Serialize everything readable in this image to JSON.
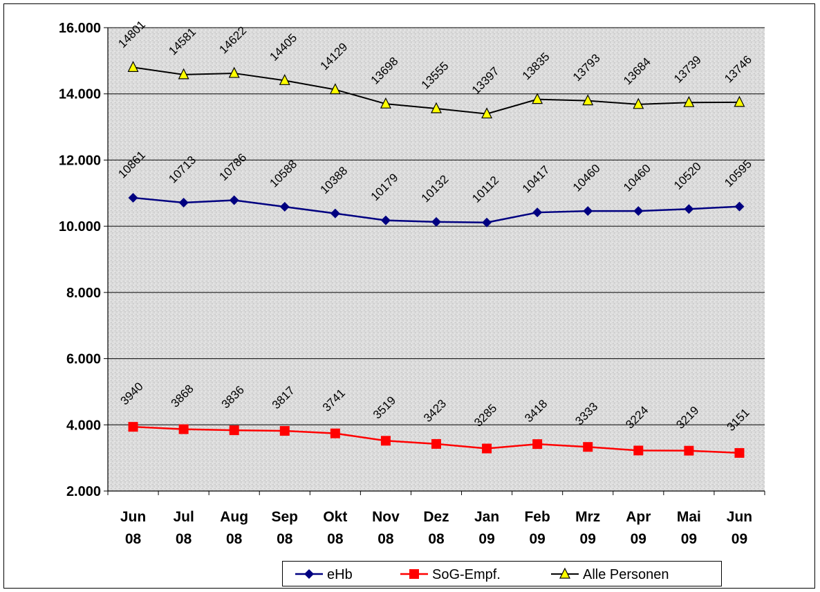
{
  "chart_data": {
    "type": "line",
    "categories": [
      [
        "Jun",
        "08"
      ],
      [
        "Jul",
        "08"
      ],
      [
        "Aug",
        "08"
      ],
      [
        "Sep",
        "08"
      ],
      [
        "Okt",
        "08"
      ],
      [
        "Nov",
        "08"
      ],
      [
        "Dez",
        "08"
      ],
      [
        "Jan",
        "09"
      ],
      [
        "Feb",
        "09"
      ],
      [
        "Mrz",
        "09"
      ],
      [
        "Apr",
        "09"
      ],
      [
        "Mai",
        "09"
      ],
      [
        "Jun",
        "09"
      ]
    ],
    "ylim": [
      2000,
      16000
    ],
    "yticks": [
      "2.000",
      "4.000",
      "6.000",
      "8.000",
      "10.000",
      "12.000",
      "14.000",
      "16.000"
    ],
    "ytick_values": [
      2000,
      4000,
      6000,
      8000,
      10000,
      12000,
      14000,
      16000
    ],
    "grid": true,
    "legend_position": "bottom",
    "series": [
      {
        "name": "eHb",
        "color": "#000080",
        "marker": "diamond",
        "values": [
          10861,
          10713,
          10786,
          10588,
          10388,
          10179,
          10132,
          10112,
          10417,
          10460,
          10460,
          10520,
          10595
        ]
      },
      {
        "name": "SoG-Empf.",
        "color": "#ff0000",
        "marker": "square",
        "values": [
          3940,
          3868,
          3836,
          3817,
          3741,
          3519,
          3423,
          3285,
          3418,
          3333,
          3224,
          3219,
          3151
        ]
      },
      {
        "name": "Alle Personen",
        "color": "#000000",
        "marker": "triangle",
        "marker_fill": "#ffff00",
        "values": [
          14801,
          14581,
          14622,
          14405,
          14129,
          13698,
          13555,
          13397,
          13835,
          13793,
          13684,
          13739,
          13746
        ]
      }
    ]
  }
}
